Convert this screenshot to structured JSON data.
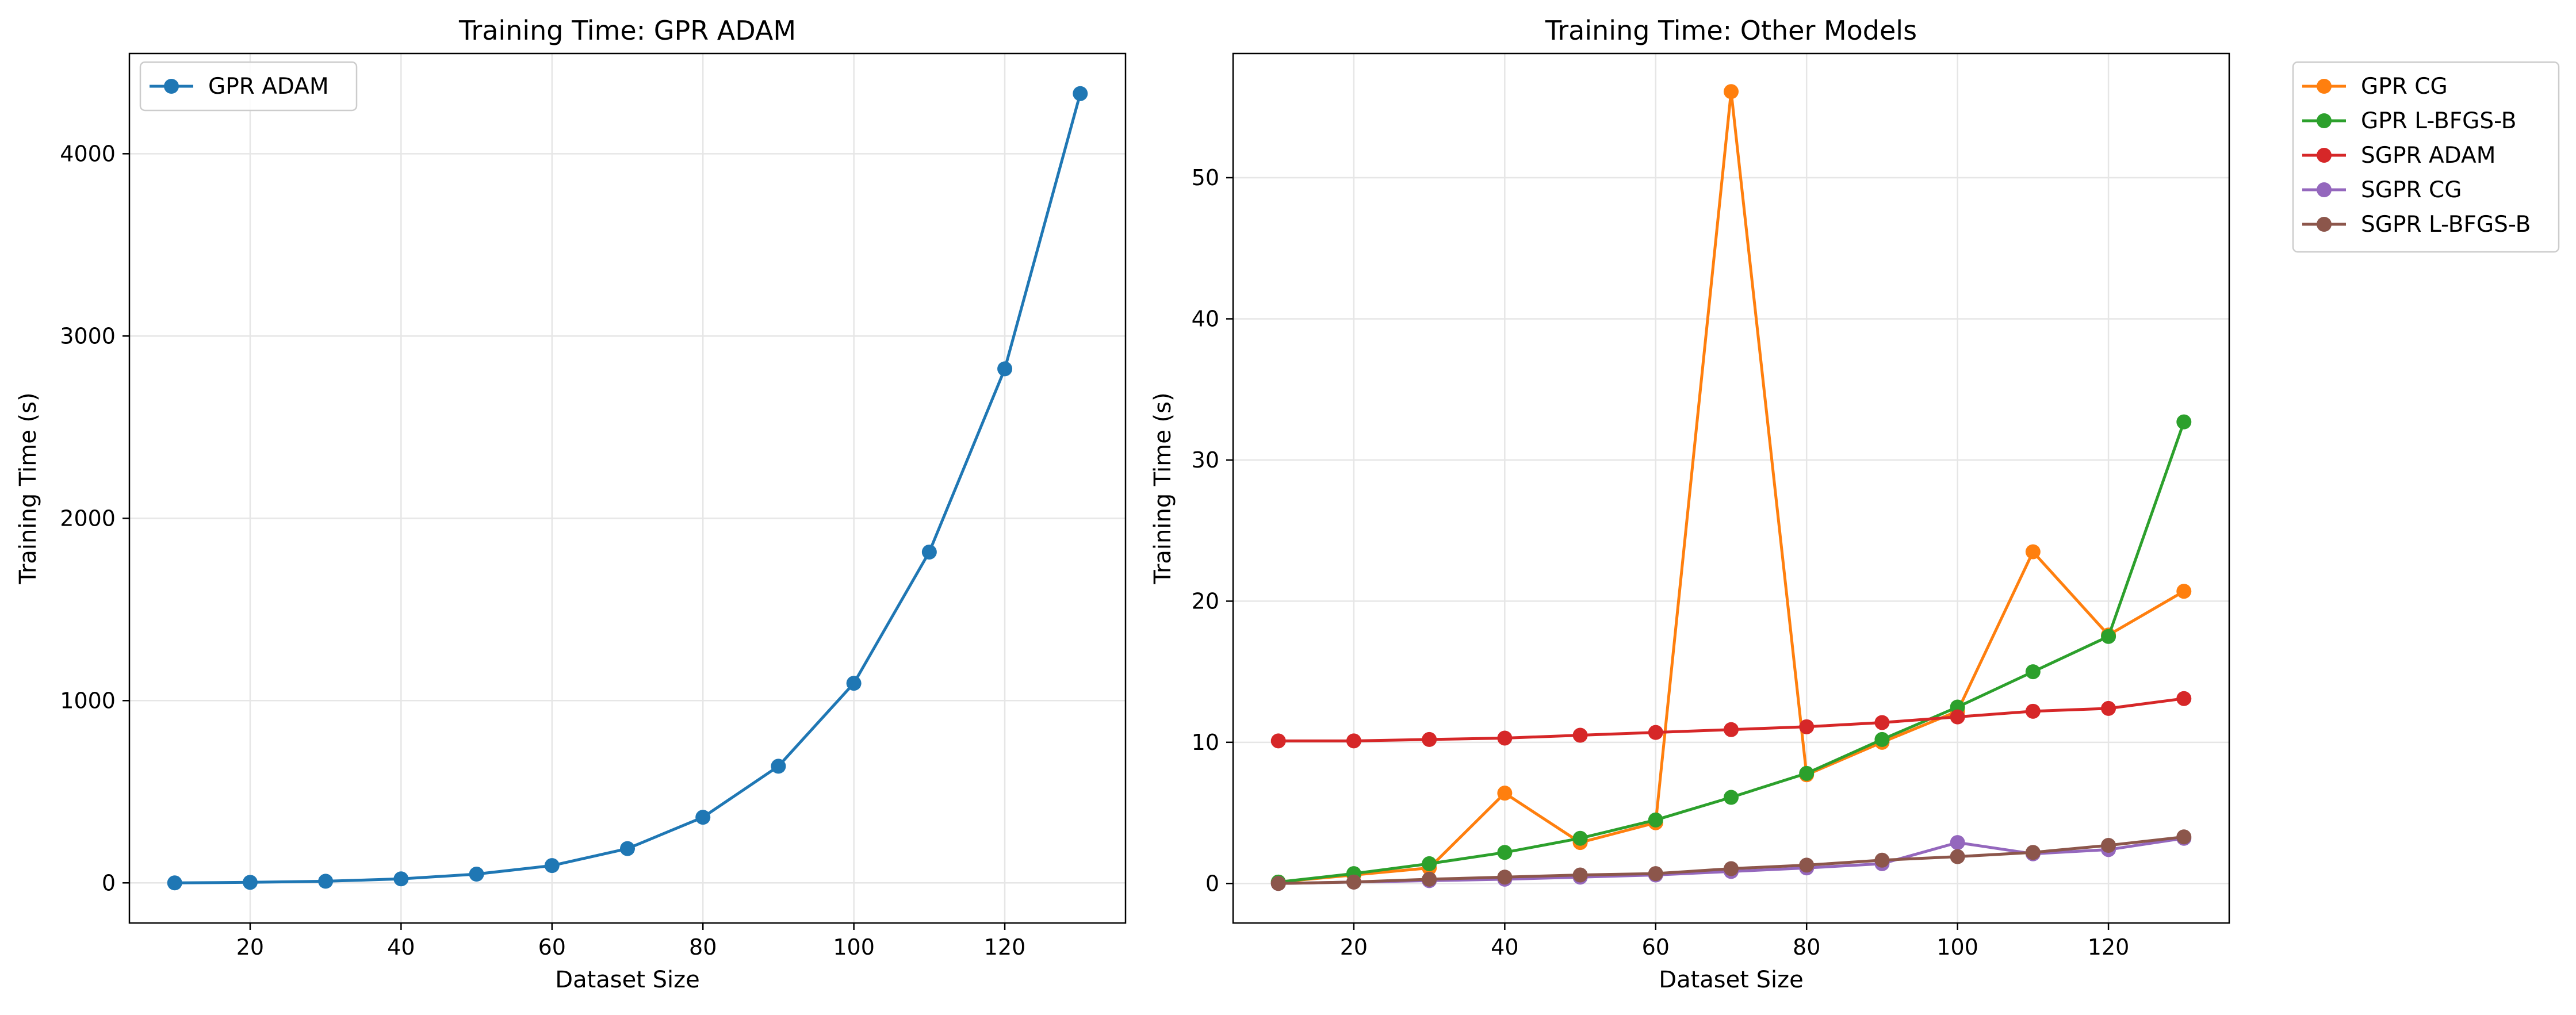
{
  "chart_data": [
    {
      "type": "line",
      "title": "Training Time: GPR ADAM",
      "xlabel": "Dataset Size",
      "ylabel": "Training Time (s)",
      "xlim": [
        4,
        136
      ],
      "ylim": [
        -220,
        4550
      ],
      "xticks": [
        20,
        40,
        60,
        80,
        100,
        120
      ],
      "yticks": [
        0,
        1000,
        2000,
        3000,
        4000
      ],
      "grid": true,
      "legend": "top-left",
      "x": [
        10,
        20,
        30,
        40,
        50,
        60,
        70,
        80,
        90,
        100,
        110,
        120,
        130
      ],
      "series": [
        {
          "name": "GPR ADAM",
          "color": "#1f77b4",
          "values": [
            0,
            3,
            9,
            22,
            48,
            95,
            188,
            360,
            640,
            1095,
            1815,
            2820,
            4330
          ]
        }
      ]
    },
    {
      "type": "line",
      "title": "Training Time: Other Models",
      "xlabel": "Dataset Size",
      "ylabel": "Training Time (s)",
      "xlim": [
        4,
        136
      ],
      "ylim": [
        -2.8,
        58.8
      ],
      "xticks": [
        20,
        40,
        60,
        80,
        100,
        120
      ],
      "yticks": [
        0,
        10,
        20,
        30,
        40,
        50
      ],
      "grid": true,
      "legend": "outside-right",
      "x": [
        10,
        20,
        30,
        40,
        50,
        60,
        70,
        80,
        90,
        100,
        110,
        120,
        130
      ],
      "series": [
        {
          "name": "GPR CG",
          "color": "#ff7f0e",
          "values": [
            0.1,
            0.6,
            1.1,
            6.4,
            2.9,
            4.3,
            56.1,
            7.7,
            10.0,
            12.2,
            23.5,
            17.6,
            20.7
          ]
        },
        {
          "name": "GPR L-BFGS-B",
          "color": "#2ca02c",
          "values": [
            0.1,
            0.7,
            1.4,
            2.2,
            3.2,
            4.5,
            6.1,
            7.8,
            10.2,
            12.5,
            15.0,
            17.5,
            32.7
          ]
        },
        {
          "name": "SGPR ADAM",
          "color": "#d62728",
          "values": [
            10.1,
            10.1,
            10.2,
            10.3,
            10.5,
            10.7,
            10.9,
            11.1,
            11.4,
            11.8,
            12.2,
            12.4,
            13.1
          ]
        },
        {
          "name": "SGPR CG",
          "color": "#9467bd",
          "values": [
            0.0,
            0.1,
            0.2,
            0.3,
            0.45,
            0.6,
            0.85,
            1.1,
            1.4,
            2.9,
            2.1,
            2.4,
            3.2
          ]
        },
        {
          "name": "SGPR L-BFGS-B",
          "color": "#8c564b",
          "values": [
            0.0,
            0.1,
            0.3,
            0.45,
            0.6,
            0.7,
            1.05,
            1.3,
            1.65,
            1.9,
            2.2,
            2.7,
            3.3
          ]
        }
      ]
    }
  ]
}
